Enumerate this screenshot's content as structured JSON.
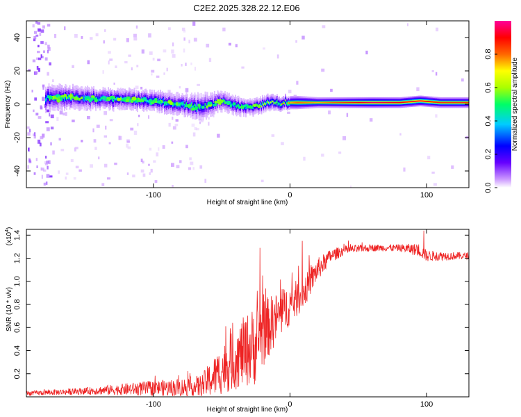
{
  "title": "C2E2.2025.328.22.12.E06",
  "chart_data": [
    {
      "type": "heatmap",
      "name": "spectrogram",
      "xlabel": "Height of straight line (km)",
      "ylabel": "Frequency (Hz)",
      "xlim": [
        -193,
        131
      ],
      "ylim": [
        -50,
        50
      ],
      "xticks": [
        -100,
        0,
        100
      ],
      "xtick_labels": [
        "-100",
        "0",
        "100"
      ],
      "yticks": [
        -40,
        -20,
        0,
        20,
        40
      ],
      "ytick_labels": [
        "-40",
        "-20",
        "0",
        "20",
        "40"
      ],
      "colorbar": {
        "label": "Normalized spectral amplitude",
        "range": [
          0,
          1
        ],
        "ticks": [
          0.0,
          0.2,
          0.4,
          0.6,
          0.8
        ],
        "tick_labels": [
          "0.0",
          "0.2",
          "0.4",
          "0.6",
          "0.8"
        ],
        "colormap": [
          "#ffffff",
          "#cc99ff",
          "#6600ff",
          "#0000ff",
          "#00ccff",
          "#00ff66",
          "#aaff00",
          "#ffff00",
          "#ff6600",
          "#ff0000",
          "#ff0099"
        ]
      },
      "ridge": {
        "x": [
          -180,
          -160,
          -140,
          -120,
          -100,
          -80,
          -65,
          -50,
          -35,
          -25,
          -15,
          -5,
          5,
          20,
          40,
          60,
          80,
          95,
          110,
          131
        ],
        "freq_center": [
          4,
          4,
          3,
          3,
          2,
          0,
          -2,
          2,
          -2,
          -1,
          1,
          1,
          1,
          1,
          1,
          1,
          1,
          2,
          1,
          1
        ],
        "halfwidth": [
          5,
          4.5,
          4,
          4,
          4,
          4,
          5,
          4,
          3.5,
          3,
          3,
          2.5,
          2.5,
          2,
          2,
          2,
          2,
          2,
          2,
          2
        ],
        "peak_amplitude": [
          0.5,
          0.5,
          0.5,
          0.5,
          0.5,
          0.5,
          0.45,
          0.45,
          0.45,
          0.5,
          0.6,
          0.7,
          0.8,
          0.75,
          0.85,
          0.95,
          0.9,
          0.95,
          0.85,
          0.85
        ]
      }
    },
    {
      "type": "line",
      "name": "snr",
      "xlabel": "Height of straight line (km)",
      "ylabel": "SNR (10 * v/v)",
      "y_multiplier": "(x10",
      "y_multiplier_exponent": "4",
      "y_multiplier_close": ")",
      "xlim": [
        -193,
        131
      ],
      "ylim": [
        0,
        1.45
      ],
      "xticks": [
        -100,
        0,
        100
      ],
      "xtick_labels": [
        "-100",
        "0",
        "100"
      ],
      "yticks": [
        0.2,
        0.4,
        0.6,
        0.8,
        1.0,
        1.2,
        1.4
      ],
      "ytick_labels": [
        "0.2",
        "0.4",
        "0.6",
        "0.8",
        "1.0",
        "1.2",
        "1.4"
      ],
      "color": "#ee2222",
      "envelope": {
        "x": [
          -193,
          -150,
          -110,
          -80,
          -65,
          -55,
          -45,
          -35,
          -25,
          -20,
          -10,
          0,
          10,
          20,
          30,
          40,
          60,
          80,
          95,
          100,
          110,
          131
        ],
        "mean": [
          0.03,
          0.05,
          0.07,
          0.08,
          0.09,
          0.18,
          0.28,
          0.38,
          0.45,
          0.55,
          0.68,
          0.8,
          0.9,
          1.1,
          1.22,
          1.27,
          1.29,
          1.29,
          1.27,
          1.22,
          1.22,
          1.22
        ],
        "noise": [
          0.02,
          0.03,
          0.06,
          0.08,
          0.1,
          0.18,
          0.24,
          0.3,
          0.35,
          0.3,
          0.22,
          0.18,
          0.14,
          0.1,
          0.06,
          0.04,
          0.03,
          0.03,
          0.06,
          0.05,
          0.04,
          0.03
        ]
      },
      "spikes": [
        {
          "x": -22,
          "y": 1.29
        },
        {
          "x": -20,
          "y": 1.05
        },
        {
          "x": 9,
          "y": 1.35
        },
        {
          "x": 98,
          "y": 1.44
        }
      ]
    }
  ]
}
